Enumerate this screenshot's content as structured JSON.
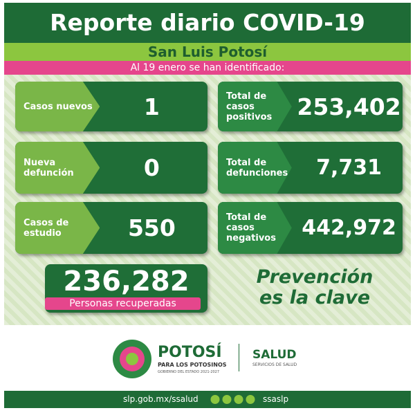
{
  "header": {
    "title": "Reporte diario COVID-19",
    "region": "San Luis Potosí",
    "date_line": "Al 19 enero se han identificado:"
  },
  "cards": [
    {
      "label": "Casos nuevos",
      "value": "1"
    },
    {
      "label": "Total de casos positivos",
      "value": "253,402"
    },
    {
      "label": "Nueva defunción",
      "value": "0"
    },
    {
      "label": "Total de defunciones",
      "value": "7,731"
    },
    {
      "label": "Casos de estudio",
      "value": "550"
    },
    {
      "label": "Total de casos negativos",
      "value": "442,972"
    }
  ],
  "recovered": {
    "value": "236,282",
    "label": "Personas recuperadas"
  },
  "slogan": [
    "Prevención",
    "es la clave"
  ],
  "footer": {
    "logo_title": "POTOSÍ",
    "logo_subtitle": "PARA LOS POTOSINOS",
    "logo_caption": "GOBIERNO DEL ESTADO 2021-2027",
    "agency": "SALUD",
    "agency_caption": "SERVICIOS DE SALUD",
    "website": "slp.gob.mx/ssalud",
    "handle": "ssaslp"
  }
}
